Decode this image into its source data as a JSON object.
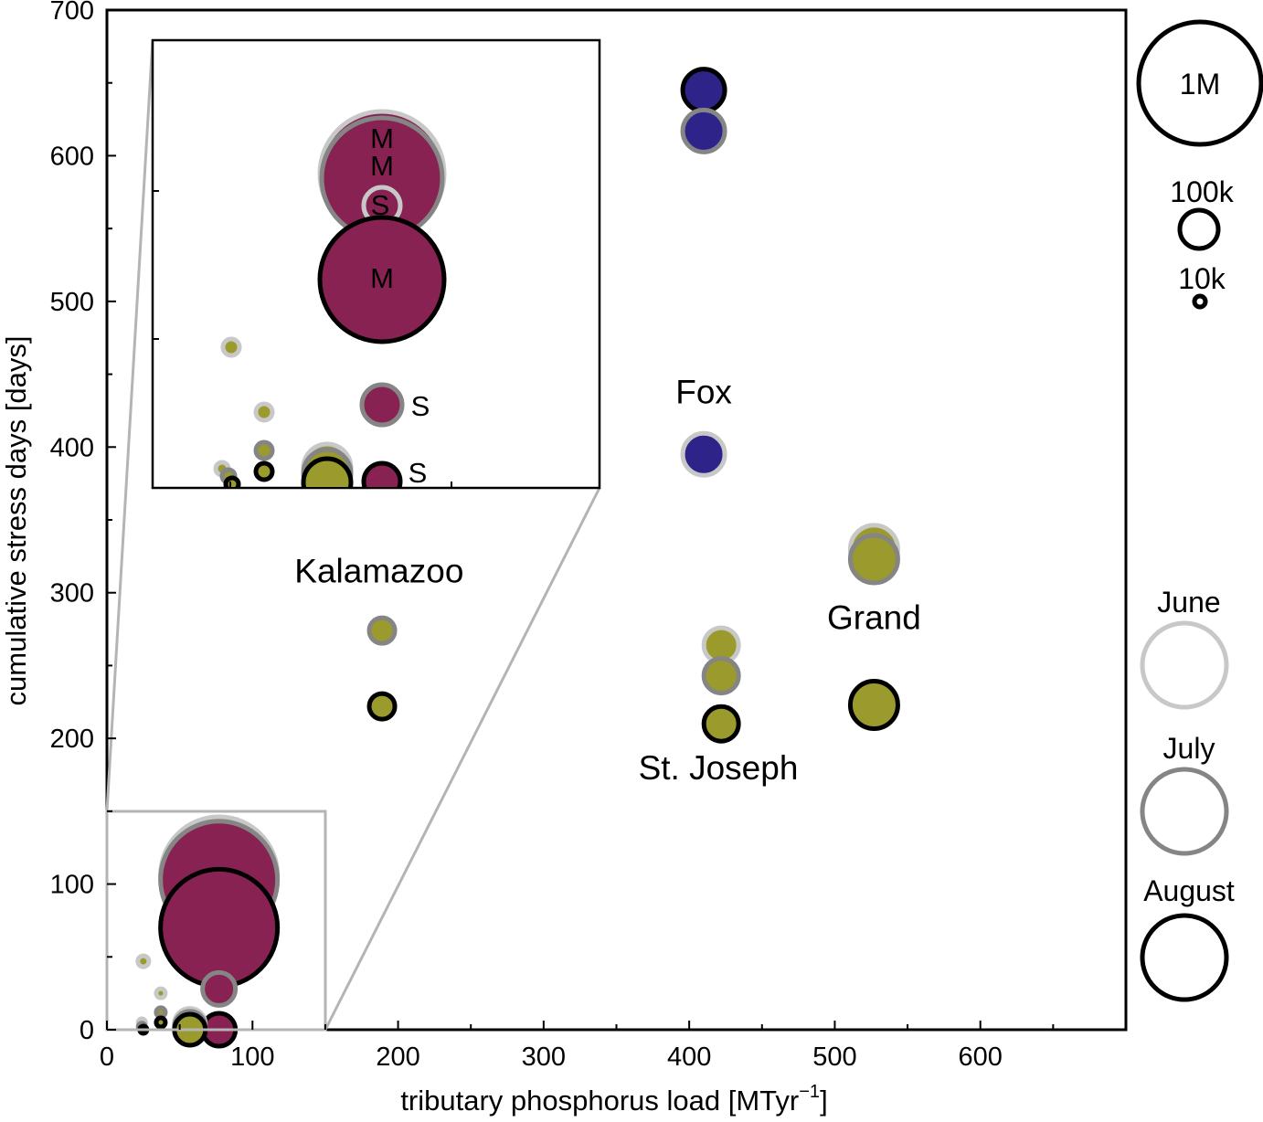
{
  "chart_data": {
    "type": "bubble",
    "xlabel": "tributary phosphorus load [MTyr",
    "xlabel_unit_sup": "−1",
    "xlabel_close": "]",
    "ylabel": "cumulative stress days [days]",
    "xlim": [
      0,
      700
    ],
    "ylim": [
      0,
      700
    ],
    "x_ticks": [
      0,
      100,
      200,
      300,
      400,
      500,
      600
    ],
    "y_ticks": [
      0,
      100,
      200,
      300,
      400,
      500,
      600,
      700
    ],
    "month_colors": {
      "June": "#c8c8c8",
      "July": "#858585",
      "August": "#000000"
    },
    "region_colors": {
      "olive": "#9b9a2c",
      "blue": "#2d2389",
      "maroon": "#882253"
    },
    "size_legend": [
      {
        "label": "1M",
        "population": 1000000
      },
      {
        "label": "100k",
        "population": 100000
      },
      {
        "label": "10k",
        "population": 10000
      }
    ],
    "month_legend": [
      "June",
      "July",
      "August"
    ],
    "river_labels": [
      {
        "text": "Fox",
        "x": 410,
        "y": 430
      },
      {
        "text": "Kalamazoo",
        "x": 187,
        "y": 307
      },
      {
        "text": "Grand",
        "x": 527,
        "y": 275
      },
      {
        "text": "St. Joseph",
        "x": 420,
        "y": 172
      }
    ],
    "points": [
      {
        "x": 410,
        "y": 645,
        "month": "August",
        "fill": "blue",
        "r": 23
      },
      {
        "x": 410,
        "y": 617,
        "month": "July",
        "fill": "blue",
        "r": 23
      },
      {
        "x": 410,
        "y": 395,
        "month": "June",
        "fill": "blue",
        "r": 23
      },
      {
        "x": 527,
        "y": 330,
        "month": "June",
        "fill": "olive",
        "r": 26
      },
      {
        "x": 527,
        "y": 323,
        "month": "July",
        "fill": "olive",
        "r": 26
      },
      {
        "x": 527,
        "y": 223,
        "month": "August",
        "fill": "olive",
        "r": 26
      },
      {
        "x": 422,
        "y": 264,
        "month": "June",
        "fill": "olive",
        "r": 19
      },
      {
        "x": 422,
        "y": 243,
        "month": "July",
        "fill": "olive",
        "r": 19
      },
      {
        "x": 422,
        "y": 210,
        "month": "August",
        "fill": "olive",
        "r": 19
      },
      {
        "x": 189,
        "y": 274,
        "month": "July",
        "fill": "olive",
        "r": 14
      },
      {
        "x": 189,
        "y": 222,
        "month": "August",
        "fill": "olive",
        "r": 14
      },
      {
        "x": 77,
        "y": 106,
        "month": "June",
        "fill": "maroon",
        "r": 64
      },
      {
        "x": 77,
        "y": 103,
        "month": "July",
        "fill": "maroon",
        "r": 64
      },
      {
        "x": 77,
        "y": 95,
        "month": "June",
        "fill": "none",
        "r": 17
      },
      {
        "x": 77,
        "y": 70,
        "month": "August",
        "fill": "maroon",
        "r": 64
      },
      {
        "x": 77,
        "y": 28,
        "month": "July",
        "fill": "maroon",
        "r": 18
      },
      {
        "x": 77,
        "y": 0,
        "month": "August",
        "fill": "maroon",
        "r": 18
      },
      {
        "x": 25,
        "y": 47,
        "month": "June",
        "fill": "olive",
        "r": 6
      },
      {
        "x": 37,
        "y": 25,
        "month": "June",
        "fill": "olive",
        "r": 5
      },
      {
        "x": 37,
        "y": 12,
        "month": "July",
        "fill": "olive",
        "r": 5
      },
      {
        "x": 37,
        "y": 5,
        "month": "August",
        "fill": "olive",
        "r": 5
      },
      {
        "x": 24,
        "y": 5,
        "month": "June",
        "fill": "olive",
        "r": 4
      },
      {
        "x": 24,
        "y": 2,
        "month": "July",
        "fill": "olive",
        "r": 4
      },
      {
        "x": 25,
        "y": 0,
        "month": "August",
        "fill": "olive",
        "r": 4
      },
      {
        "x": 57,
        "y": 4,
        "month": "June",
        "fill": "olive",
        "r": 17
      },
      {
        "x": 57,
        "y": 2,
        "month": "July",
        "fill": "olive",
        "r": 17
      },
      {
        "x": 57,
        "y": 0,
        "month": "August",
        "fill": "olive",
        "r": 17
      }
    ],
    "inset": {
      "xlim": [
        0,
        150
      ],
      "ylim": [
        0,
        150
      ],
      "labels": [
        "M",
        "M",
        "S",
        "M",
        "S",
        "S"
      ],
      "points": [
        {
          "x": 77,
          "y": 108,
          "month": "June",
          "fill": "maroon",
          "r": 64
        },
        {
          "x": 77,
          "y": 106,
          "month": "July",
          "fill": "maroon",
          "r": 64
        },
        {
          "x": 77,
          "y": 96,
          "month": "June",
          "fill": "none",
          "r": 17
        },
        {
          "x": 77,
          "y": 70,
          "month": "August",
          "fill": "maroon",
          "r": 64
        },
        {
          "x": 77,
          "y": 28,
          "month": "July",
          "fill": "maroon",
          "r": 18
        },
        {
          "x": 77,
          "y": 1,
          "month": "August",
          "fill": "maroon",
          "r": 18
        },
        {
          "x": 25,
          "y": 47,
          "month": "June",
          "fill": "olive",
          "r": 8
        },
        {
          "x": 37,
          "y": 25,
          "month": "June",
          "fill": "olive",
          "r": 8
        },
        {
          "x": 37,
          "y": 12,
          "month": "July",
          "fill": "olive",
          "r": 8
        },
        {
          "x": 37,
          "y": 5,
          "month": "August",
          "fill": "olive",
          "r": 8
        },
        {
          "x": 24,
          "y": 5,
          "month": "June",
          "fill": "olive",
          "r": 6
        },
        {
          "x": 24,
          "y": 2,
          "month": "July",
          "fill": "olive",
          "r": 6
        },
        {
          "x": 25,
          "y": 0,
          "month": "August",
          "fill": "olive",
          "r": 6
        },
        {
          "x": 57,
          "y": 4,
          "month": "June",
          "fill": "olive",
          "r": 22
        },
        {
          "x": 57,
          "y": 2,
          "month": "July",
          "fill": "olive",
          "r": 22
        },
        {
          "x": 57,
          "y": 1,
          "month": "August",
          "fill": "olive",
          "r": 22
        }
      ]
    }
  }
}
